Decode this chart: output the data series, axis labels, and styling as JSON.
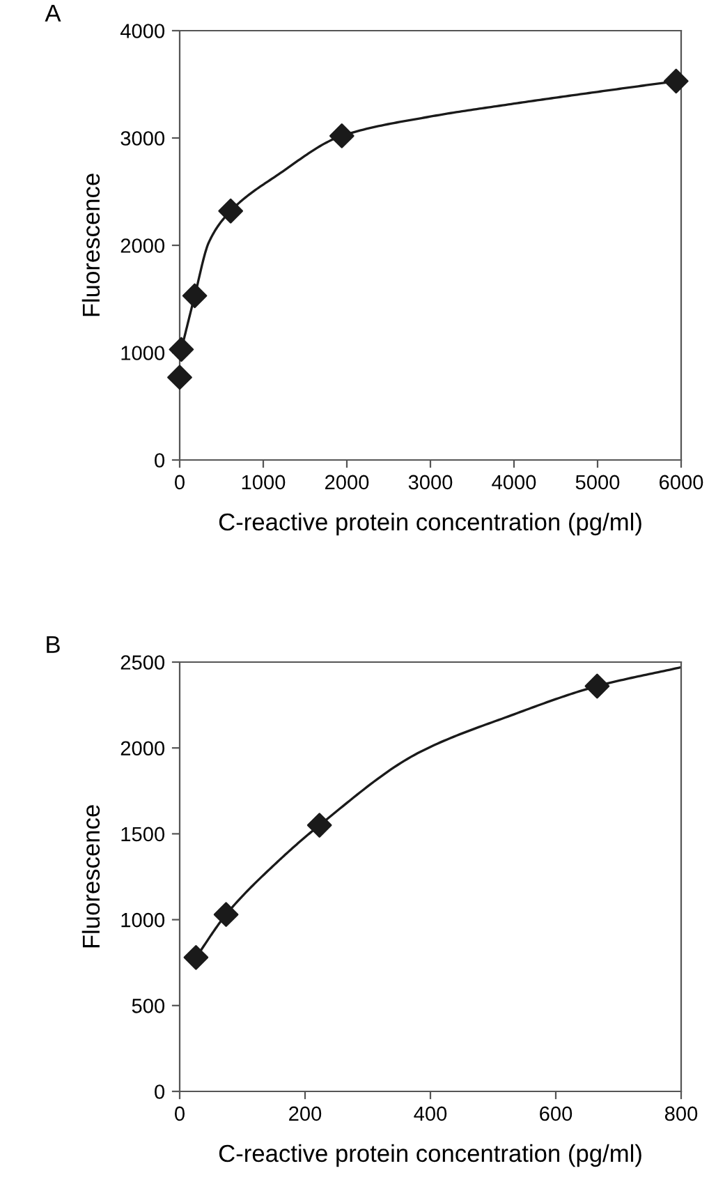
{
  "chart_data": [
    {
      "type": "scatter",
      "title": "A",
      "xlabel": "C-reactive protein concentration (pg/ml)",
      "ylabel": "Fluorescence",
      "xlim": [
        0,
        6000
      ],
      "xticks": [
        0,
        1000,
        2000,
        3000,
        4000,
        5000,
        6000
      ],
      "ylim": [
        0,
        4000
      ],
      "yticks": [
        0,
        1000,
        2000,
        3000,
        4000
      ],
      "grid": false,
      "legend": false,
      "series": [
        {
          "color": "#1a1a1a",
          "marker": "diamond",
          "x": [
            0,
            20,
            180,
            610,
            1940,
            5940
          ],
          "values": [
            770,
            1030,
            1530,
            2320,
            3020,
            3530
          ]
        },
        {
          "type": "line",
          "color": "#1a1a1a",
          "marker": "none",
          "line_style": "solid",
          "x": [
            20,
            180,
            350,
            610,
            1180,
            1940,
            3000,
            4000,
            5000,
            5940
          ],
          "values": [
            1030,
            1530,
            2030,
            2320,
            2660,
            3020,
            3200,
            3320,
            3430,
            3530
          ]
        }
      ]
    },
    {
      "type": "scatter",
      "title": "B",
      "xlabel": "C-reactive protein concentration (pg/ml)",
      "ylabel": "Fluorescence",
      "xlim": [
        0,
        800
      ],
      "xticks": [
        0,
        200,
        400,
        600,
        800
      ],
      "ylim": [
        0,
        2500
      ],
      "yticks": [
        0,
        500,
        1000,
        1500,
        2000,
        2500
      ],
      "grid": false,
      "legend": false,
      "series": [
        {
          "color": "#1a1a1a",
          "marker": "diamond",
          "x": [
            26,
            74,
            223,
            666
          ],
          "values": [
            780,
            1030,
            1550,
            2360
          ]
        },
        {
          "type": "line",
          "color": "#1a1a1a",
          "marker": "none",
          "line_style": "solid",
          "x": [
            26,
            74,
            157,
            223,
            380,
            529,
            666,
            800
          ],
          "values": [
            780,
            1030,
            1340,
            1550,
            1970,
            2190,
            2360,
            2470
          ]
        }
      ]
    }
  ]
}
